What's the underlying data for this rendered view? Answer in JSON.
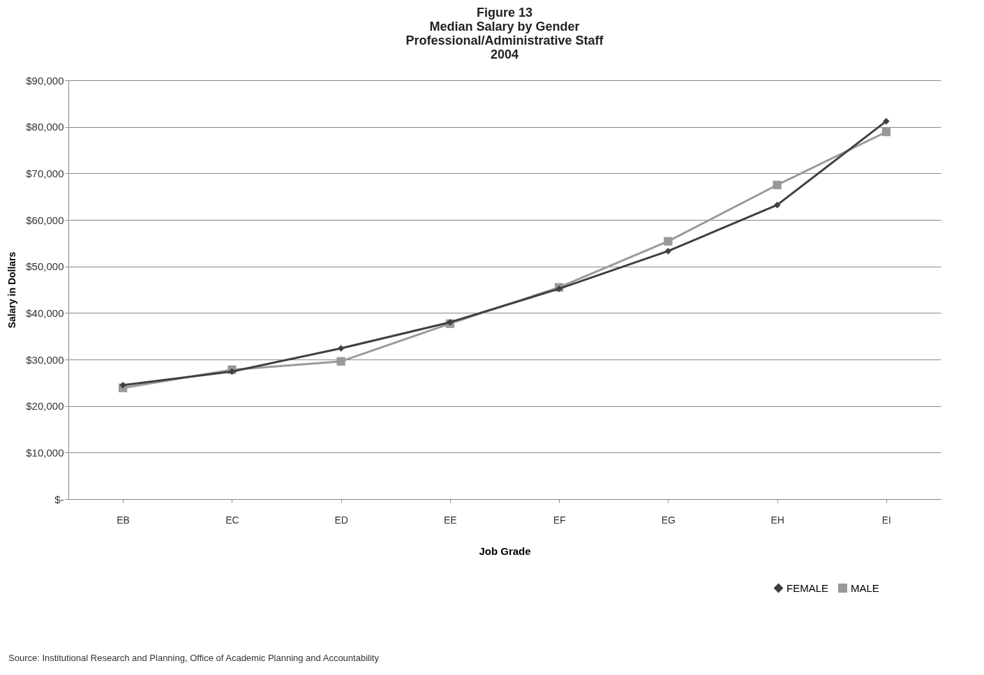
{
  "chart_data": {
    "type": "line",
    "title": [
      "Figure 13",
      "Median Salary by Gender",
      "Professional/Administrative Staff",
      "2004"
    ],
    "xlabel": "Job Grade",
    "ylabel": "Salary in Dollars",
    "categories": [
      "EB",
      "EC",
      "ED",
      "EE",
      "EF",
      "EG",
      "EH",
      "EI"
    ],
    "series": [
      {
        "name": "FEMALE",
        "color": "#404040",
        "marker": "diamond",
        "values": [
          24500,
          27400,
          32400,
          38000,
          45200,
          53300,
          63200,
          81200
        ]
      },
      {
        "name": "MALE",
        "color": "#999999",
        "marker": "square",
        "values": [
          23900,
          27800,
          29600,
          37700,
          45500,
          55400,
          67500,
          78900
        ]
      }
    ],
    "ylim": [
      0,
      90000
    ],
    "yticks": [
      {
        "value": 0,
        "label": "$-"
      },
      {
        "value": 10000,
        "label": "$10,000"
      },
      {
        "value": 20000,
        "label": "$20,000"
      },
      {
        "value": 30000,
        "label": "$30,000"
      },
      {
        "value": 40000,
        "label": "$40,000"
      },
      {
        "value": 50000,
        "label": "$50,000"
      },
      {
        "value": 60000,
        "label": "$60,000"
      },
      {
        "value": 70000,
        "label": "$70,000"
      },
      {
        "value": 80000,
        "label": "$80,000"
      },
      {
        "value": 90000,
        "label": "$90,000"
      }
    ],
    "grid": "y",
    "legend": "bottom right",
    "line_style": "solid",
    "annotations": [
      "Source: Institutional Research and Planning, Office of Academic Planning and Accountability"
    ]
  }
}
